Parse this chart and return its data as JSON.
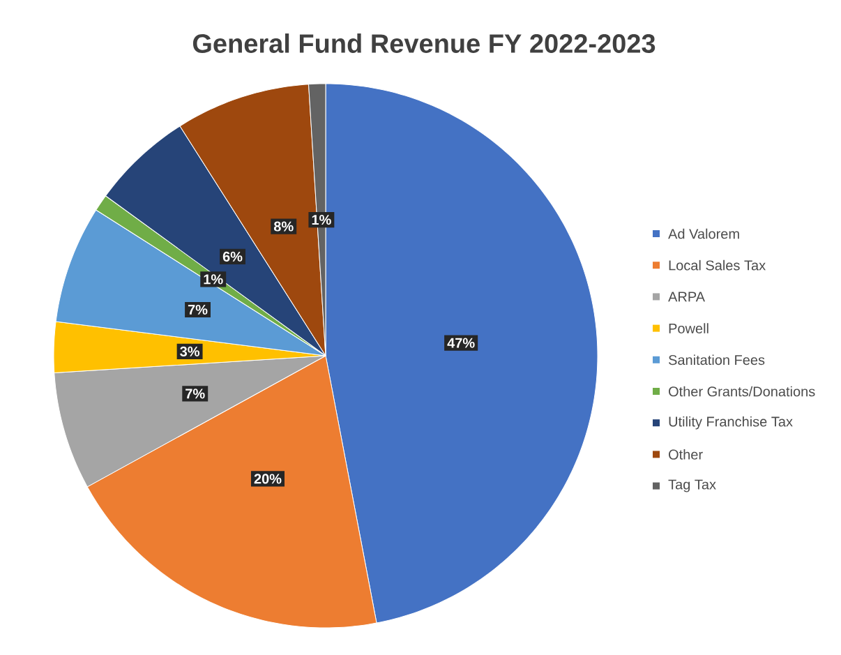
{
  "chart_data": {
    "type": "pie",
    "title": "General Fund Revenue FY 2022-2023",
    "categories": [
      "Ad Valorem",
      "Local Sales Tax",
      "ARPA",
      "Powell",
      "Sanitation Fees",
      "Other Grants/Donations",
      "Utility Franchise Tax",
      "Other",
      "Tag Tax"
    ],
    "values": [
      47,
      20,
      7,
      3,
      7,
      1,
      6,
      8,
      1
    ],
    "value_labels": [
      "47%",
      "20%",
      "7%",
      "3%",
      "7%",
      "1%",
      "6%",
      "8%",
      "1%"
    ],
    "colors": [
      "#4472c4",
      "#ed7d31",
      "#a5a5a5",
      "#ffc000",
      "#5b9bd5",
      "#70ad47",
      "#264478",
      "#9e480e",
      "#636363"
    ],
    "legend": "right"
  }
}
